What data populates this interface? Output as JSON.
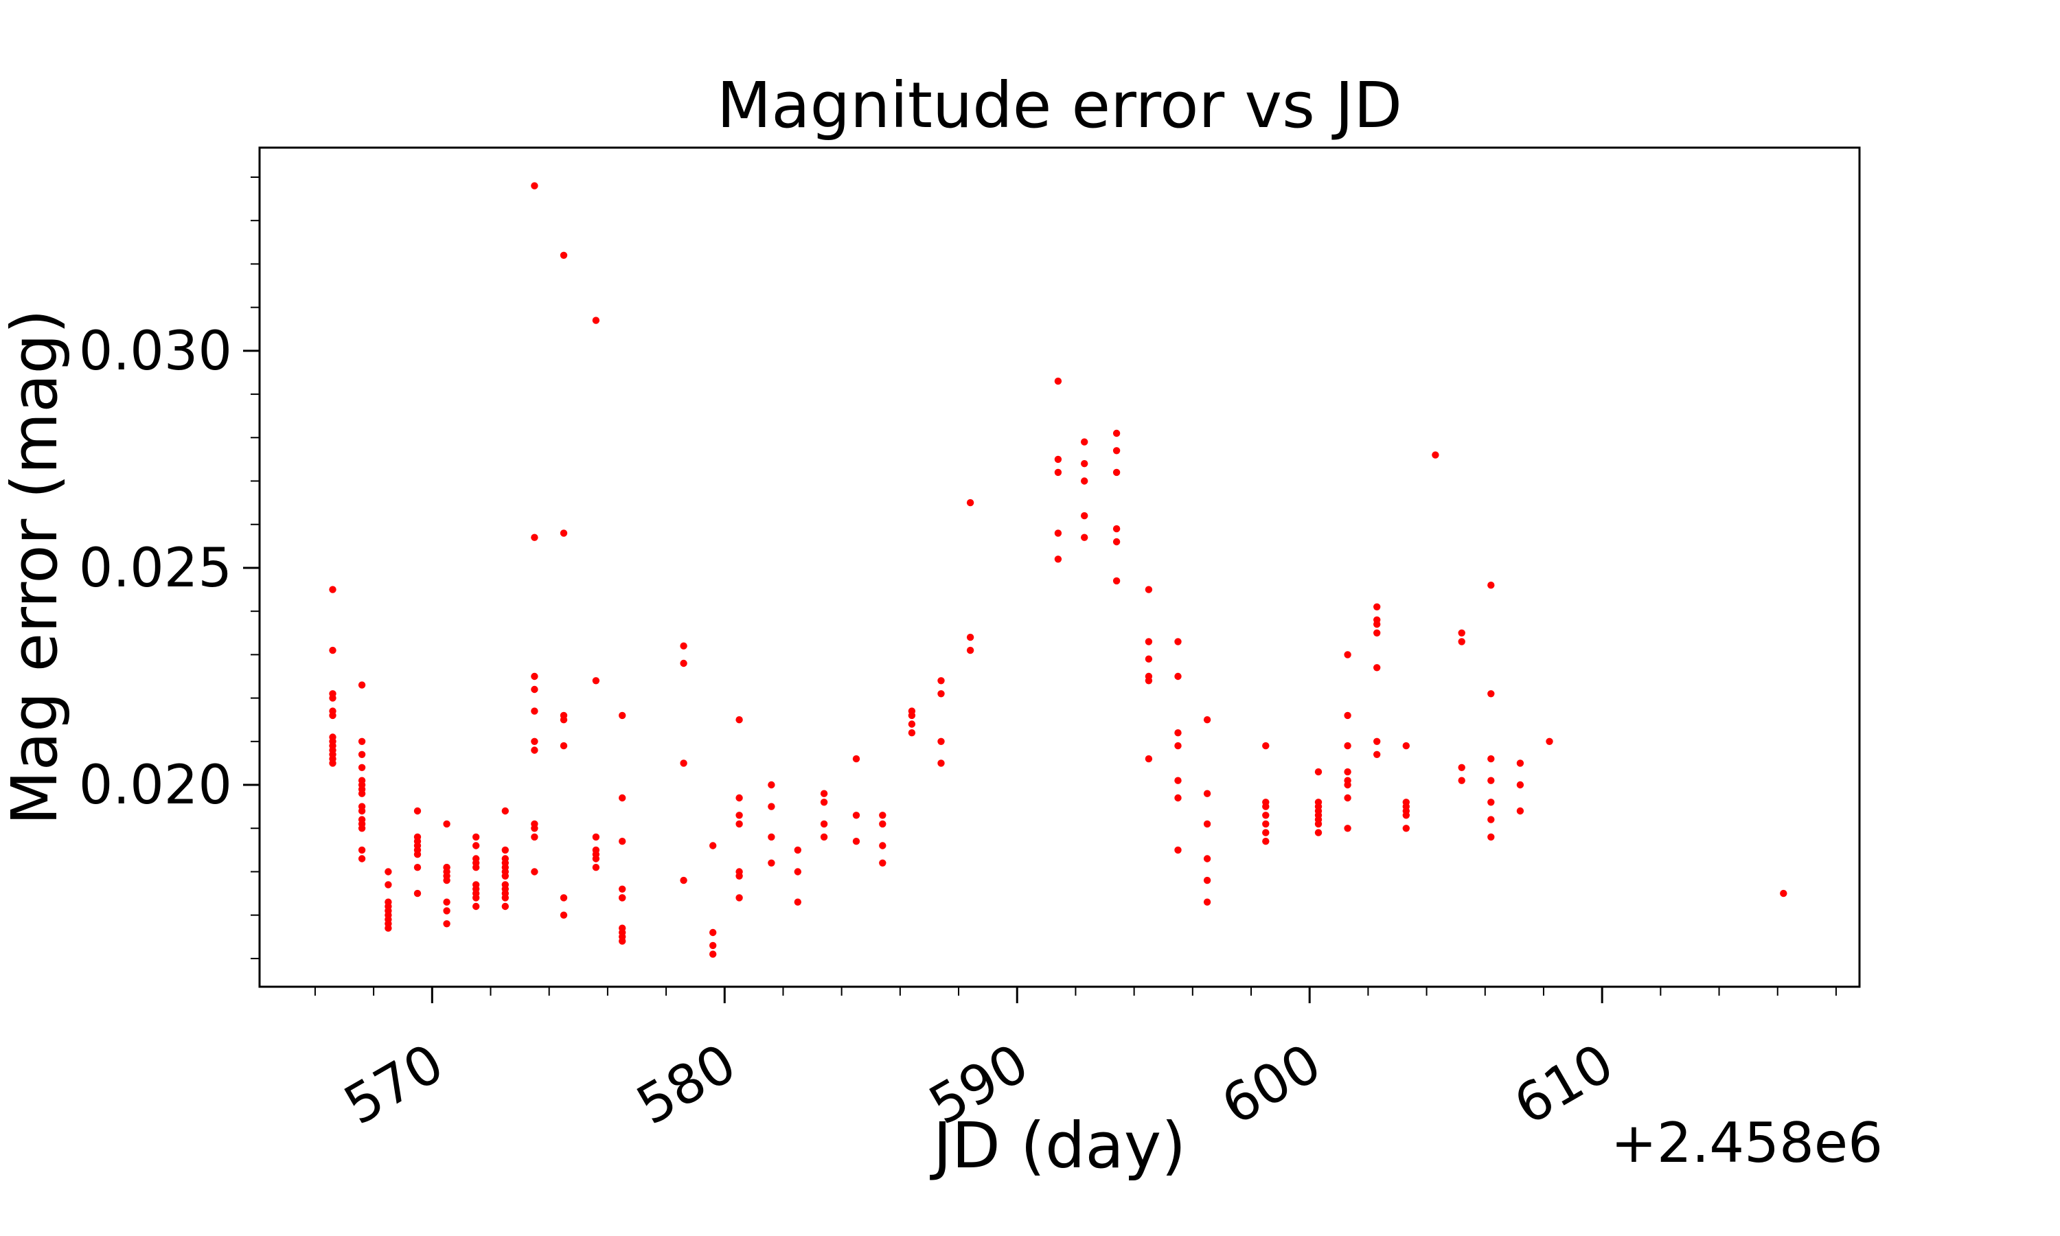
{
  "figure": {
    "title": "Magnitude error vs JD",
    "xlabel": "JD (day)",
    "ylabel": "Mag error (mag)",
    "x_offset_text": "+2.458e6"
  },
  "chart_data": {
    "type": "scatter",
    "title": "Magnitude error vs JD",
    "xlabel": "JD (day)",
    "ylabel": "Mag error (mag)",
    "x_offset": 2458000,
    "marker_color": "#ff0000",
    "background_color": "#ffffff",
    "spine_color": "#000000",
    "grid": false,
    "legend": false,
    "xlim": [
      564.1,
      618.8
    ],
    "ylim": [
      0.01535,
      0.03468
    ],
    "x_major_ticks": [
      570,
      580,
      590,
      600,
      610
    ],
    "x_minor_tick_step": 2,
    "y_major_ticks": [
      0.02,
      0.025,
      0.03
    ],
    "y_minor_tick_step": 0.001,
    "x_tick_rotation_deg": 30,
    "nights": [
      {
        "jd": 566.6,
        "mag_errors": [
          0.0245,
          0.0231,
          0.0221,
          0.022,
          0.0217,
          0.0216,
          0.0211,
          0.021,
          0.0209,
          0.0208,
          0.0207,
          0.0206,
          0.0205
        ]
      },
      {
        "jd": 567.6,
        "mag_errors": [
          0.0223,
          0.021,
          0.0207,
          0.0204,
          0.0201,
          0.02,
          0.0199,
          0.0198,
          0.0195,
          0.0194,
          0.0192,
          0.0191,
          0.019,
          0.0185,
          0.0183
        ]
      },
      {
        "jd": 568.5,
        "mag_errors": [
          0.018,
          0.0177,
          0.0173,
          0.0172,
          0.0171,
          0.017,
          0.0169,
          0.0168,
          0.0167
        ]
      },
      {
        "jd": 569.5,
        "mag_errors": [
          0.0194,
          0.0188,
          0.0187,
          0.0186,
          0.0185,
          0.0184,
          0.0181,
          0.0175
        ]
      },
      {
        "jd": 570.5,
        "mag_errors": [
          0.0191,
          0.0181,
          0.0181,
          0.018,
          0.0179,
          0.0178,
          0.0173,
          0.0171,
          0.0168
        ]
      },
      {
        "jd": 571.5,
        "mag_errors": [
          0.0188,
          0.0186,
          0.0183,
          0.0182,
          0.0181,
          0.0177,
          0.0176,
          0.0175,
          0.0174,
          0.0172
        ]
      },
      {
        "jd": 572.5,
        "mag_errors": [
          0.0194,
          0.0185,
          0.0183,
          0.0182,
          0.0181,
          0.018,
          0.0179,
          0.0177,
          0.0176,
          0.0175,
          0.0174,
          0.0172
        ]
      },
      {
        "jd": 573.5,
        "mag_errors": [
          0.0338,
          0.0257,
          0.0225,
          0.0222,
          0.0217,
          0.021,
          0.0208,
          0.0191,
          0.019,
          0.0188,
          0.018
        ]
      },
      {
        "jd": 574.5,
        "mag_errors": [
          0.0322,
          0.0258,
          0.0216,
          0.0215,
          0.0209,
          0.0174,
          0.017
        ]
      },
      {
        "jd": 575.6,
        "mag_errors": [
          0.0307,
          0.0224,
          0.0188,
          0.0185,
          0.0184,
          0.0183,
          0.0181
        ]
      },
      {
        "jd": 576.5,
        "mag_errors": [
          0.0216,
          0.0197,
          0.0187,
          0.0176,
          0.0174,
          0.0174,
          0.0167,
          0.0166,
          0.0165,
          0.0164
        ]
      },
      {
        "jd": 578.6,
        "mag_errors": [
          0.0232,
          0.0228,
          0.0205,
          0.0178
        ]
      },
      {
        "jd": 579.6,
        "mag_errors": [
          0.0186,
          0.0166,
          0.0163,
          0.0161
        ]
      },
      {
        "jd": 580.5,
        "mag_errors": [
          0.0215,
          0.0197,
          0.0193,
          0.0191,
          0.018,
          0.0179,
          0.0174
        ]
      },
      {
        "jd": 581.6,
        "mag_errors": [
          0.02,
          0.0195,
          0.0188,
          0.0182
        ]
      },
      {
        "jd": 582.5,
        "mag_errors": [
          0.0185,
          0.018,
          0.0173
        ]
      },
      {
        "jd": 583.4,
        "mag_errors": [
          0.0198,
          0.0196,
          0.0191,
          0.0188
        ]
      },
      {
        "jd": 584.5,
        "mag_errors": [
          0.0206,
          0.0193,
          0.0187
        ]
      },
      {
        "jd": 585.4,
        "mag_errors": [
          0.0193,
          0.0191,
          0.0186,
          0.0182
        ]
      },
      {
        "jd": 586.4,
        "mag_errors": [
          0.0217,
          0.0216,
          0.0214,
          0.0212
        ]
      },
      {
        "jd": 587.4,
        "mag_errors": [
          0.0224,
          0.0221,
          0.021,
          0.0205
        ]
      },
      {
        "jd": 588.4,
        "mag_errors": [
          0.0265,
          0.0234,
          0.0231
        ]
      },
      {
        "jd": 591.4,
        "mag_errors": [
          0.0293,
          0.0275,
          0.0272,
          0.0258,
          0.0252
        ]
      },
      {
        "jd": 592.3,
        "mag_errors": [
          0.0279,
          0.0274,
          0.027,
          0.0262,
          0.0257
        ]
      },
      {
        "jd": 593.4,
        "mag_errors": [
          0.0281,
          0.0277,
          0.0272,
          0.0259,
          0.0256,
          0.0247
        ]
      },
      {
        "jd": 594.5,
        "mag_errors": [
          0.0245,
          0.0233,
          0.0229,
          0.0225,
          0.0224,
          0.0206
        ]
      },
      {
        "jd": 595.5,
        "mag_errors": [
          0.0233,
          0.0225,
          0.0212,
          0.0209,
          0.0201,
          0.0197,
          0.0185
        ]
      },
      {
        "jd": 596.5,
        "mag_errors": [
          0.0215,
          0.0198,
          0.0191,
          0.0183,
          0.0178,
          0.0173
        ]
      },
      {
        "jd": 598.5,
        "mag_errors": [
          0.0209,
          0.0196,
          0.0195,
          0.0193,
          0.0191,
          0.0189,
          0.0187
        ]
      },
      {
        "jd": 600.3,
        "mag_errors": [
          0.0203,
          0.0196,
          0.0195,
          0.0194,
          0.0193,
          0.0192,
          0.0191,
          0.0189
        ]
      },
      {
        "jd": 601.3,
        "mag_errors": [
          0.023,
          0.0216,
          0.0209,
          0.0203,
          0.0201,
          0.02,
          0.0197,
          0.019
        ]
      },
      {
        "jd": 602.3,
        "mag_errors": [
          0.0241,
          0.0238,
          0.0237,
          0.0235,
          0.0227,
          0.021,
          0.0207
        ]
      },
      {
        "jd": 603.3,
        "mag_errors": [
          0.0209,
          0.0196,
          0.0195,
          0.0194,
          0.0193,
          0.019
        ]
      },
      {
        "jd": 604.3,
        "mag_errors": [
          0.0276
        ]
      },
      {
        "jd": 605.2,
        "mag_errors": [
          0.0235,
          0.0233,
          0.0204,
          0.0201
        ]
      },
      {
        "jd": 606.2,
        "mag_errors": [
          0.0246,
          0.0221,
          0.0206,
          0.0201,
          0.0196,
          0.0192,
          0.0188
        ]
      },
      {
        "jd": 607.2,
        "mag_errors": [
          0.0205,
          0.02,
          0.0194
        ]
      },
      {
        "jd": 608.2,
        "mag_errors": [
          0.021
        ]
      },
      {
        "jd": 616.2,
        "mag_errors": [
          0.0175
        ]
      }
    ]
  }
}
